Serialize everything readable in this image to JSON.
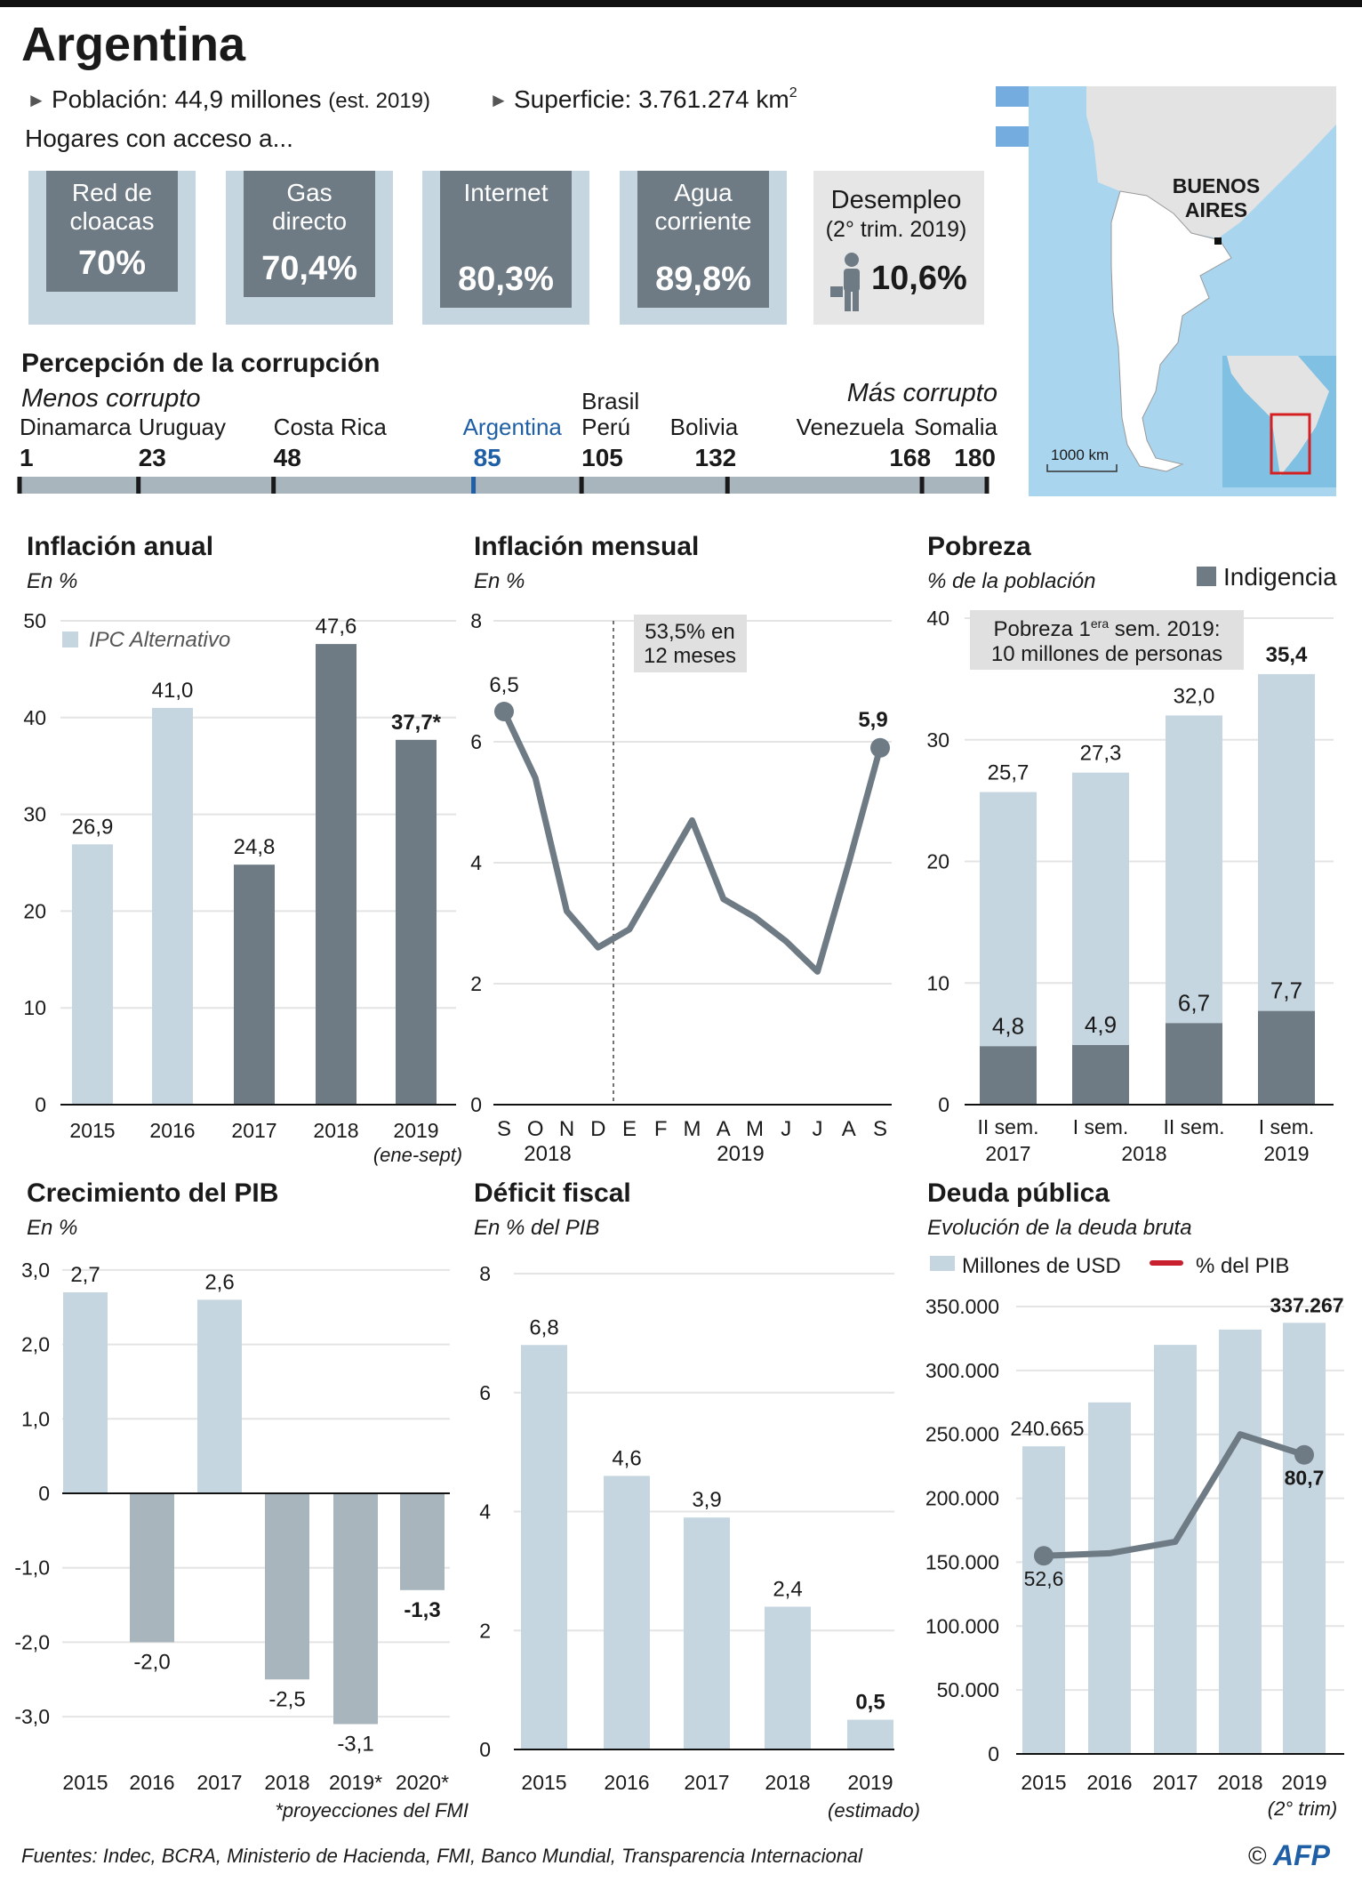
{
  "header": {
    "title": "Argentina",
    "population": "Población: 44,9 millones",
    "population_note": "(est. 2019)",
    "area": "Superficie: 3.761.274 km",
    "area_sup": "2",
    "households_intro": "Hogares con acceso a..."
  },
  "access": [
    {
      "line1": "Red de",
      "line2": "cloacas",
      "value": "70%",
      "percent": 70.0
    },
    {
      "line1": "Gas",
      "line2": "directo",
      "value": "70,4%",
      "percent": 70.4
    },
    {
      "line1": "Internet",
      "line2": "",
      "value": "80,3%",
      "percent": 80.3
    },
    {
      "line1": "Agua",
      "line2": "corriente",
      "value": "89,8%",
      "percent": 89.8
    }
  ],
  "unemployment": {
    "label": "Desempleo",
    "period": "(2° trim. 2019)",
    "value": "10,6%",
    "icon": "person-with-briefcase-icon"
  },
  "map": {
    "city_line1": "BUENOS",
    "city_line2": "AIRES",
    "scale": "1000 km",
    "flag_colors": [
      "#74acdf",
      "#ffffff",
      "#f6b40e"
    ]
  },
  "corruption": {
    "title": "Percepción de la corrupción",
    "less": "Menos corrupto",
    "more": "Más corrupto",
    "countries": [
      {
        "name": [
          "Dinamarca"
        ],
        "rank": 1,
        "label": "1"
      },
      {
        "name": [
          "Uruguay"
        ],
        "rank": 23,
        "label": "23"
      },
      {
        "name": [
          "Costa Rica"
        ],
        "rank": 48,
        "label": "48"
      },
      {
        "name": [
          "Argentina"
        ],
        "rank": 85,
        "label": "85",
        "highlight": true
      },
      {
        "name": [
          "Brasil",
          "Perú"
        ],
        "rank": 105,
        "label": "105"
      },
      {
        "name": [
          "Bolivia"
        ],
        "rank": 132,
        "label": "132"
      },
      {
        "name": [
          "Venezuela"
        ],
        "rank": 168,
        "label": "168"
      },
      {
        "name": [
          "Somalia"
        ],
        "rank": 180,
        "label": "180"
      }
    ],
    "highlight_color": "#1f5fa6"
  },
  "chart_data": [
    {
      "id": "inflacion-anual",
      "type": "bar",
      "title": "Inflación anual",
      "subtitle": "En %",
      "categories": [
        "2015",
        "2016",
        "2017",
        "2018",
        "2019"
      ],
      "values": [
        26.9,
        41.0,
        24.8,
        47.6,
        37.7
      ],
      "value_labels": [
        "26,9",
        "41,0",
        "24,8",
        "47,6",
        "37,7*"
      ],
      "ipc_alternativo": [
        true,
        true,
        false,
        false,
        false
      ],
      "legend": "IPC Alternativo",
      "note": "(ene-sept)",
      "ylim": [
        0,
        50
      ],
      "yticks": [
        "0",
        "10",
        "20",
        "30",
        "40",
        "50"
      ],
      "colors": {
        "alt": "#c6d6e0",
        "official": "#6e7b84"
      }
    },
    {
      "id": "inflacion-mensual",
      "type": "line",
      "title": "Inflación mensual",
      "subtitle": "En %",
      "categories": [
        "S",
        "O",
        "N",
        "D",
        "E",
        "F",
        "M",
        "A",
        "M",
        "J",
        "J",
        "A",
        "S"
      ],
      "years": [
        "2018",
        "2019"
      ],
      "values": [
        6.5,
        5.4,
        3.2,
        2.6,
        2.9,
        3.8,
        4.7,
        3.4,
        3.1,
        2.7,
        2.2,
        4.0,
        5.9
      ],
      "point_labels": {
        "first": "6,5",
        "last": "5,9"
      },
      "annotation": [
        "53,5% en",
        "12 meses"
      ],
      "ylim": [
        0,
        8
      ],
      "yticks": [
        "0",
        "2",
        "4",
        "6",
        "8"
      ],
      "color": "#6e7b84"
    },
    {
      "id": "pobreza",
      "type": "bar",
      "title": "Pobreza",
      "subtitle": "% de la población",
      "categories": [
        [
          "II sem.",
          "2017"
        ],
        [
          "I sem.",
          ""
        ],
        [
          "II sem.",
          ""
        ],
        [
          "I sem.",
          "2019"
        ]
      ],
      "shared_year": "2018",
      "series": [
        {
          "name": "Pobreza",
          "values": [
            25.7,
            27.3,
            32.0,
            35.4
          ],
          "labels": [
            "25,7",
            "27,3",
            "32,0",
            "35,4"
          ]
        },
        {
          "name": "Indigencia",
          "values": [
            4.8,
            4.9,
            6.7,
            7.7
          ],
          "labels": [
            "4,8",
            "4,9",
            "6,7",
            "7,7"
          ]
        }
      ],
      "legend": "Indigencia",
      "annotation": {
        "text1": "Pobreza 1",
        "sup": "era",
        "text2": " sem. 2019:",
        "line2": "10 millones de personas"
      },
      "ylim": [
        0,
        40
      ],
      "yticks": [
        "0",
        "10",
        "20",
        "30",
        "40"
      ],
      "colors": {
        "pobreza": "#c6d6e0",
        "indigencia": "#6e7b84"
      }
    },
    {
      "id": "crecimiento-pib",
      "type": "bar",
      "title": "Crecimiento del PIB",
      "subtitle": "En %",
      "categories": [
        "2015",
        "2016",
        "2017",
        "2018",
        "2019*",
        "2020*"
      ],
      "values": [
        2.7,
        -2.0,
        2.6,
        -2.5,
        -3.1,
        -1.3
      ],
      "value_labels": [
        "2,7",
        "-2,0",
        "2,6",
        "-2,5",
        "-3,1",
        "-1,3"
      ],
      "note": "*proyecciones del FMI",
      "ylim": [
        -3,
        3
      ],
      "yticks": [
        "3,0",
        "2,0",
        "1,0",
        "0",
        "-1,0",
        "-2,0",
        "-3,0"
      ],
      "colors": {
        "positive": "#c6d6e0",
        "negative": "#a9b5bd"
      }
    },
    {
      "id": "deficit-fiscal",
      "type": "bar",
      "title": "Déficit fiscal",
      "subtitle": "En % del PIB",
      "categories": [
        "2015",
        "2016",
        "2017",
        "2018",
        "2019"
      ],
      "values": [
        6.8,
        4.6,
        3.9,
        2.4,
        0.5
      ],
      "value_labels": [
        "6,8",
        "4,6",
        "3,9",
        "2,4",
        "0,5"
      ],
      "note": "(estimado)",
      "ylim": [
        0,
        8
      ],
      "yticks": [
        "0",
        "2",
        "4",
        "6",
        "8"
      ],
      "color": "#c6d6e0"
    },
    {
      "id": "deuda-publica",
      "type": "bar+line",
      "title": "Deuda pública",
      "subtitle": "Evolución de la deuda bruta",
      "categories": [
        "2015",
        "2016",
        "2017",
        "2018",
        "2019"
      ],
      "series": [
        {
          "name": "Millones de USD",
          "values": [
            240665,
            275000,
            320000,
            332000,
            337267
          ],
          "labels": [
            "240.665",
            "",
            "",
            "",
            "337.267"
          ]
        },
        {
          "name": "% del PIB",
          "values": [
            52.6,
            53.3,
            56.5,
            86.4,
            80.7
          ],
          "labels": [
            "52,6",
            "",
            "",
            "",
            "80,7"
          ]
        }
      ],
      "note": "(2° trim)",
      "ylim": [
        0,
        350000
      ],
      "yticks": [
        "0",
        "50.000",
        "100.000",
        "150.000",
        "200.000",
        "250.000",
        "300.000",
        "350.000"
      ],
      "colors": {
        "bars": "#c6d6e0",
        "line": "#6e7b84",
        "legend_line": "#c8202f"
      }
    }
  ],
  "footer": {
    "sources": "Fuentes: Indec, BCRA, Ministerio de Hacienda, FMI, Banco Mundial, Transparencia Internacional",
    "copyright": "©",
    "logo": "AFP"
  }
}
